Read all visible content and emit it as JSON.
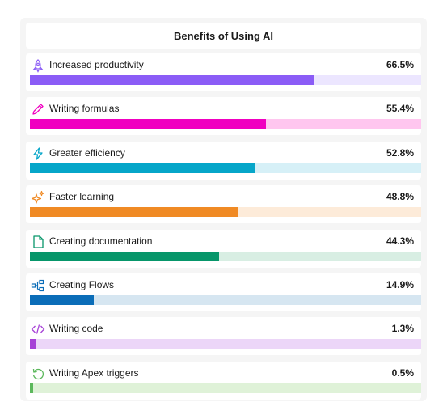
{
  "chart_data": {
    "type": "bar",
    "title": "Benefits of Using AI",
    "xlim": [
      0,
      100
    ],
    "categories": [
      "Increased productivity",
      "Writing formulas",
      "Greater efficiency",
      "Faster learning",
      "Creating documentation",
      "Creating Flows",
      "Writing code",
      "Writing Apex triggers"
    ],
    "values": [
      66.5,
      55.4,
      52.8,
      48.8,
      44.3,
      14.9,
      1.3,
      0.5
    ],
    "value_labels": [
      "66.5%",
      "55.4%",
      "52.8%",
      "48.8%",
      "44.3%",
      "14.9%",
      "1.3%",
      "0.5%"
    ],
    "icons": [
      "rocket-icon",
      "pencil-icon",
      "lightning-icon",
      "sparkles-icon",
      "document-icon",
      "flow-icon",
      "code-icon",
      "refresh-icon"
    ],
    "bar_colors": [
      "#8b5cf6",
      "#f000c0",
      "#06a6c9",
      "#f08a24",
      "#07966a",
      "#0b6db8",
      "#a640d6",
      "#5cb85c"
    ],
    "track_colors": [
      "#ece6ff",
      "#ffc6ef",
      "#d6f0f7",
      "#fdebd9",
      "#d8eee3",
      "#d6e6f1",
      "#ecd6f8",
      "#dff2d8"
    ]
  }
}
